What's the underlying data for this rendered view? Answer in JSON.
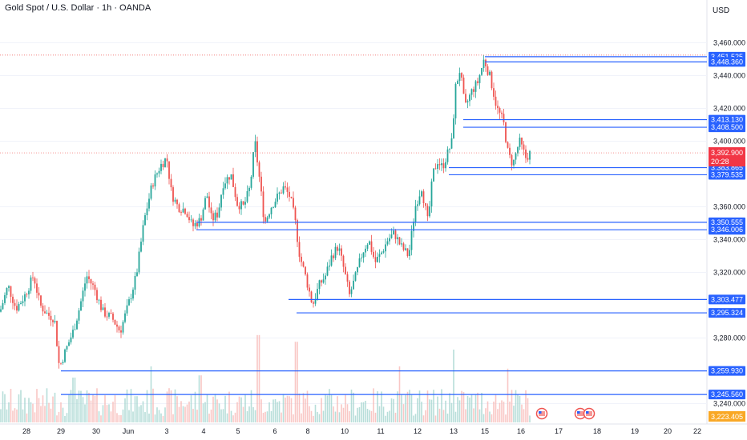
{
  "header": {
    "title": "Gold Spot / U.S. Dollar · 1h · OANDA",
    "currency": "USD"
  },
  "colors": {
    "up": "#26a69a",
    "down": "#ef5350",
    "level": "#2962ff",
    "price_tag": "#f23645",
    "last_tag": "#f9a825"
  },
  "chart_data": {
    "type": "candlestick",
    "y_ticks": [
      "3,460.000",
      "3,440.000",
      "3,420.000",
      "3,400.000",
      "3,360.000",
      "3,340.000",
      "3,320.000",
      "3,280.000",
      "3,240.000"
    ],
    "y_tick_values": [
      3460,
      3440,
      3420,
      3400,
      3360,
      3340,
      3320,
      3280,
      3240
    ],
    "ylim": [
      3230,
      3470
    ],
    "x_ticks": [
      "28",
      "29",
      "30",
      "Jun",
      "3",
      "4",
      "5",
      "6",
      "8",
      "10",
      "11",
      "12",
      "13",
      "15",
      "16",
      "17",
      "18",
      "19",
      "20",
      "22"
    ],
    "levels": [
      {
        "label": "3,451.525",
        "value": 3451.525
      },
      {
        "label": "3,448.360",
        "value": 3448.36
      },
      {
        "label": "3,413.130",
        "value": 3413.13
      },
      {
        "label": "3,408.500",
        "value": 3408.5
      },
      {
        "label": "3,383.865",
        "value": 3383.865
      },
      {
        "label": "3,379.535",
        "value": 3379.535
      },
      {
        "label": "3,350.555",
        "value": 3350.555
      },
      {
        "label": "3,346.006",
        "value": 3346.006
      },
      {
        "label": "3,303.477",
        "value": 3303.477
      },
      {
        "label": "3,295.324",
        "value": 3295.324
      },
      {
        "label": "3,259.930",
        "value": 3259.93
      },
      {
        "label": "3,245.560",
        "value": 3245.56
      }
    ],
    "current_price": {
      "label": "3,392.900",
      "value": 3392.9,
      "countdown": "20:28"
    },
    "last_tag": {
      "label": "3,223.405"
    },
    "high_marker_value": 3452.5,
    "path_points": [
      [
        0,
        3296
      ],
      [
        10,
        3312
      ],
      [
        20,
        3298
      ],
      [
        30,
        3305
      ],
      [
        42,
        3318
      ],
      [
        50,
        3300
      ],
      [
        60,
        3294
      ],
      [
        68,
        3292
      ],
      [
        74,
        3262
      ],
      [
        80,
        3270
      ],
      [
        92,
        3285
      ],
      [
        100,
        3300
      ],
      [
        108,
        3318
      ],
      [
        118,
        3310
      ],
      [
        128,
        3296
      ],
      [
        140,
        3292
      ],
      [
        150,
        3284
      ],
      [
        160,
        3300
      ],
      [
        170,
        3318
      ],
      [
        180,
        3352
      ],
      [
        190,
        3374
      ],
      [
        200,
        3385
      ],
      [
        208,
        3390
      ],
      [
        214,
        3368
      ],
      [
        222,
        3360
      ],
      [
        232,
        3358
      ],
      [
        240,
        3348
      ],
      [
        250,
        3352
      ],
      [
        258,
        3368
      ],
      [
        264,
        3352
      ],
      [
        272,
        3356
      ],
      [
        278,
        3374
      ],
      [
        288,
        3380
      ],
      [
        296,
        3362
      ],
      [
        304,
        3360
      ],
      [
        312,
        3372
      ],
      [
        318,
        3400
      ],
      [
        324,
        3376
      ],
      [
        330,
        3350
      ],
      [
        338,
        3360
      ],
      [
        346,
        3366
      ],
      [
        354,
        3372
      ],
      [
        362,
        3366
      ],
      [
        368,
        3352
      ],
      [
        374,
        3330
      ],
      [
        382,
        3316
      ],
      [
        390,
        3300
      ],
      [
        398,
        3312
      ],
      [
        406,
        3318
      ],
      [
        414,
        3330
      ],
      [
        422,
        3336
      ],
      [
        430,
        3320
      ],
      [
        436,
        3306
      ],
      [
        444,
        3318
      ],
      [
        452,
        3332
      ],
      [
        460,
        3340
      ],
      [
        468,
        3326
      ],
      [
        476,
        3332
      ],
      [
        484,
        3340
      ],
      [
        492,
        3344
      ],
      [
        500,
        3336
      ],
      [
        510,
        3330
      ],
      [
        518,
        3360
      ],
      [
        526,
        3372
      ],
      [
        534,
        3350
      ],
      [
        540,
        3380
      ],
      [
        546,
        3388
      ],
      [
        552,
        3384
      ],
      [
        558,
        3392
      ],
      [
        564,
        3400
      ],
      [
        568,
        3432
      ],
      [
        574,
        3444
      ],
      [
        580,
        3420
      ],
      [
        588,
        3430
      ],
      [
        596,
        3436
      ],
      [
        604,
        3450
      ],
      [
        612,
        3438
      ],
      [
        620,
        3420
      ],
      [
        628,
        3412
      ],
      [
        634,
        3392
      ],
      [
        640,
        3386
      ],
      [
        648,
        3400
      ],
      [
        656,
        3390
      ],
      [
        662,
        3393
      ]
    ],
    "volume_peaks": [
      [
        322,
        0.78
      ],
      [
        370,
        0.72
      ],
      [
        566,
        0.65
      ],
      [
        498,
        0.5
      ],
      [
        634,
        0.48
      ],
      [
        188,
        0.5
      ],
      [
        250,
        0.42
      ],
      [
        92,
        0.4
      ]
    ]
  }
}
